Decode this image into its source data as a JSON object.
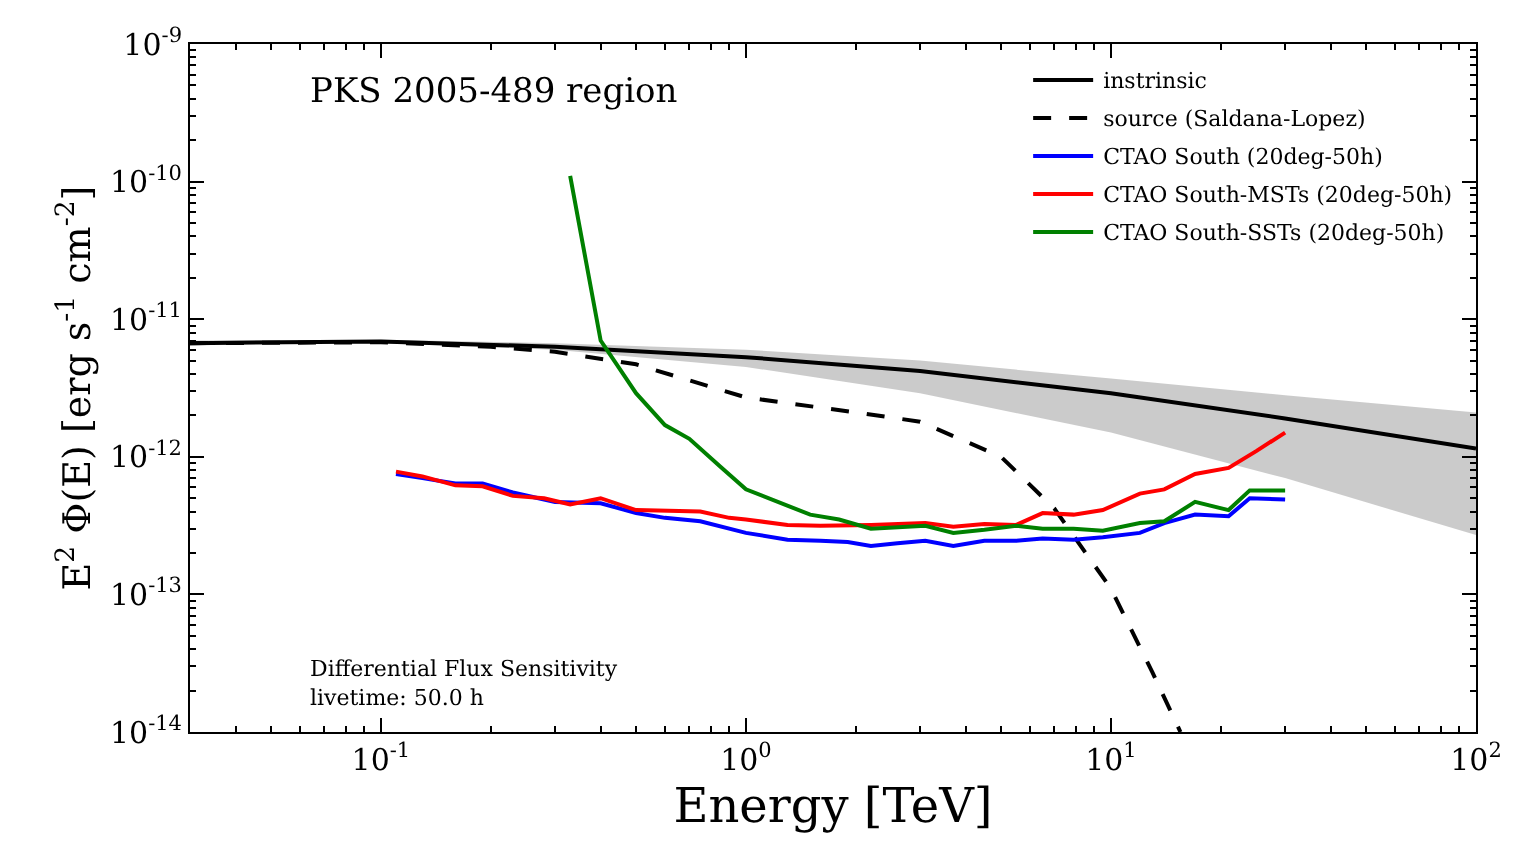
{
  "chart_data": {
    "type": "line",
    "xlabel": "Energy [TeV]",
    "ylabel": "E$^{2}$ Φ(E) [erg s$^{-1}$ cm$^{-2}$]",
    "log": "xy",
    "legend": "top right",
    "marker": "none",
    "xlim": [
      0.03,
      100
    ],
    "ylim": [
      1e-14,
      1e-09
    ],
    "xticks": [
      {
        "value": 0.1,
        "label": "10$^{-1}$"
      },
      {
        "value": 1,
        "label": "10$^{0}$"
      },
      {
        "value": 10,
        "label": "10$^{1}$"
      },
      {
        "value": 100,
        "label": "10$^{2}$"
      }
    ],
    "yticks": [
      {
        "value": 1e-14,
        "label": "10$^{-14}$"
      },
      {
        "value": 1e-13,
        "label": "10$^{-13}$"
      },
      {
        "value": 1e-12,
        "label": "10$^{-12}$"
      },
      {
        "value": 1e-11,
        "label": "10$^{-11}$"
      },
      {
        "value": 1e-10,
        "label": "10$^{-10}$"
      },
      {
        "value": 1e-09,
        "label": "10$^{-9}$"
      }
    ],
    "annotations": [
      "PKS 2005-489 region",
      "Differential Flux Sensitivity\nlivetime: 50.0 h"
    ],
    "series": [
      {
        "name": "instrinsic",
        "color": "#000000",
        "line_style": "solid",
        "x": [
          0.03,
          0.1,
          0.3,
          1,
          3,
          10,
          30,
          100
        ],
        "values": [
          6.7e-12,
          6.9e-12,
          6.3e-12,
          5.3e-12,
          4.2e-12,
          2.9e-12,
          1.9e-12,
          1.15e-12
        ],
        "upper": [
          7e-12,
          7.1e-12,
          6.7e-12,
          6e-12,
          5e-12,
          3.7e-12,
          2.8e-12,
          2.1e-12
        ],
        "lower": [
          6.6e-12,
          6.7e-12,
          6e-12,
          4.5e-12,
          2.9e-12,
          1.5e-12,
          7e-13,
          2.7e-13
        ]
      },
      {
        "name": "source (Saldana-Lopez)",
        "color": "#000000",
        "line_style": "dashed",
        "x": [
          0.03,
          0.1,
          0.2,
          0.3,
          0.5,
          1,
          2,
          3,
          5,
          7,
          10,
          13,
          15.5
        ],
        "values": [
          6.7e-12,
          6.8e-12,
          6.3e-12,
          5.8e-12,
          4.7e-12,
          2.7e-12,
          2.1e-12,
          1.8e-12,
          1e-12,
          4.2e-13,
          1.1e-13,
          2.7e-14,
          1e-14
        ]
      },
      {
        "name": "CTAO South (20deg-50h)",
        "color": "#0000ff",
        "line_style": "solid",
        "x": [
          0.11,
          0.13,
          0.16,
          0.19,
          0.23,
          0.3,
          0.4,
          0.5,
          0.6,
          0.75,
          1.0,
          1.3,
          1.6,
          1.9,
          2.2,
          2.6,
          3.1,
          3.7,
          4.5,
          5.5,
          6.5,
          7.9,
          9.5,
          12,
          14,
          17,
          21,
          24,
          30
        ],
        "values": [
          7.5e-13,
          7e-13,
          6.4e-13,
          6.4e-13,
          5.5e-13,
          4.7e-13,
          4.6e-13,
          3.9e-13,
          3.6e-13,
          3.4e-13,
          2.8e-13,
          2.5e-13,
          2.45e-13,
          2.4e-13,
          2.25e-13,
          2.35e-13,
          2.45e-13,
          2.25e-13,
          2.45e-13,
          2.45e-13,
          2.55e-13,
          2.5e-13,
          2.6e-13,
          2.8e-13,
          3.3e-13,
          3.8e-13,
          3.7e-13,
          5e-13,
          4.9e-13
        ]
      },
      {
        "name": "CTAO South-MSTs (20deg-50h)",
        "color": "#ff0000",
        "line_style": "solid",
        "x": [
          0.11,
          0.13,
          0.16,
          0.19,
          0.23,
          0.28,
          0.33,
          0.4,
          0.5,
          0.75,
          0.9,
          1.0,
          1.3,
          1.6,
          2.2,
          3.1,
          3.7,
          4.5,
          5.5,
          6.5,
          7.9,
          9.5,
          12,
          14,
          17,
          21,
          25,
          30
        ],
        "values": [
          7.8e-13,
          7.2e-13,
          6.2e-13,
          6.1e-13,
          5.2e-13,
          5e-13,
          4.5e-13,
          5e-13,
          4.1e-13,
          4e-13,
          3.6e-13,
          3.5e-13,
          3.2e-13,
          3.15e-13,
          3.2e-13,
          3.3e-13,
          3.1e-13,
          3.25e-13,
          3.2e-13,
          3.9e-13,
          3.8e-13,
          4.1e-13,
          5.4e-13,
          5.8e-13,
          7.5e-13,
          8.3e-13,
          1.1e-12,
          1.5e-12
        ]
      },
      {
        "name": "CTAO South-SSTs (20deg-50h)",
        "color": "#008000",
        "line_style": "solid",
        "x": [
          0.33,
          0.4,
          0.5,
          0.6,
          0.7,
          0.85,
          1.0,
          1.5,
          1.8,
          2.2,
          3.1,
          3.7,
          4.5,
          5.5,
          6.5,
          7.9,
          9.5,
          12,
          14,
          17,
          21,
          24,
          30
        ],
        "values": [
          1.1e-10,
          7e-12,
          2.9e-12,
          1.7e-12,
          1.35e-12,
          8.5e-13,
          5.8e-13,
          3.8e-13,
          3.5e-13,
          3e-13,
          3.15e-13,
          2.8e-13,
          2.95e-13,
          3.15e-13,
          3e-13,
          3e-13,
          2.9e-13,
          3.3e-13,
          3.4e-13,
          4.7e-13,
          4.1e-13,
          5.7e-13,
          5.7e-13
        ]
      }
    ]
  }
}
